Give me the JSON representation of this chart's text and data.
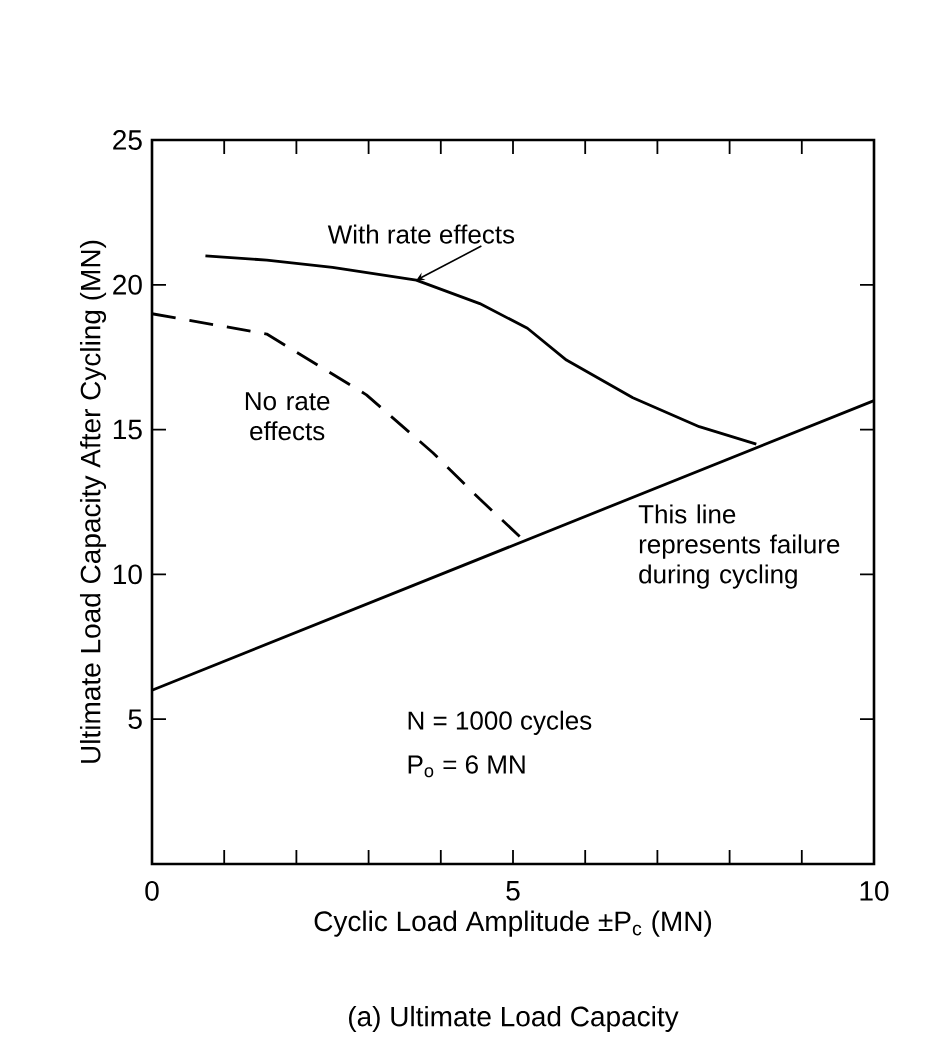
{
  "chart_data": {
    "type": "line",
    "title": "(a) Ultimate Load Capacity",
    "xlabel": "Cyclic Load Amplitude ±P$_{c}$ (MN)",
    "ylabel": "Ultimate Load Capacity After Cycling (MN)",
    "series": [
      {
        "name": "With rate effects",
        "color": "#000000",
        "line_style": "solid",
        "x": [
          0.74,
          1.59,
          2.5,
          3.66,
          4.54,
          5.2,
          5.74,
          6.66,
          7.58,
          8.37
        ],
        "values": [
          21.0,
          20.85,
          20.6,
          20.16,
          19.35,
          18.5,
          17.4,
          16.1,
          15.1,
          14.5
        ]
      },
      {
        "name": "No rate effects",
        "color": "#000000",
        "line_style": "dashed",
        "x": [
          0,
          1.59,
          2.97,
          3.89,
          4.54,
          5.14
        ],
        "values": [
          19.0,
          18.3,
          16.2,
          14.2,
          12.6,
          11.2
        ]
      },
      {
        "name": "This line represents failure during cycling",
        "color": "#000000",
        "line_style": "solid",
        "x": [
          0,
          10
        ],
        "values": [
          6,
          16
        ]
      }
    ],
    "annotations": [
      "N = 1000 cycles",
      "P$_{o}$ = 6 MN"
    ],
    "xlim": [
      0,
      10
    ],
    "ylim": [
      0,
      25
    ],
    "xticks": [
      0,
      {
        "value": 1,
        "label": null
      },
      {
        "value": 2,
        "label": null
      },
      {
        "value": 3,
        "label": null
      },
      {
        "value": 4,
        "label": null
      },
      5,
      {
        "value": 6,
        "label": null
      },
      {
        "value": 7,
        "label": null
      },
      {
        "value": 8,
        "label": null
      },
      {
        "value": 9,
        "label": null
      },
      10
    ],
    "yticks": [
      {
        "value": 0,
        "label": null
      },
      5,
      10,
      15,
      20,
      25
    ],
    "marker": "none"
  }
}
